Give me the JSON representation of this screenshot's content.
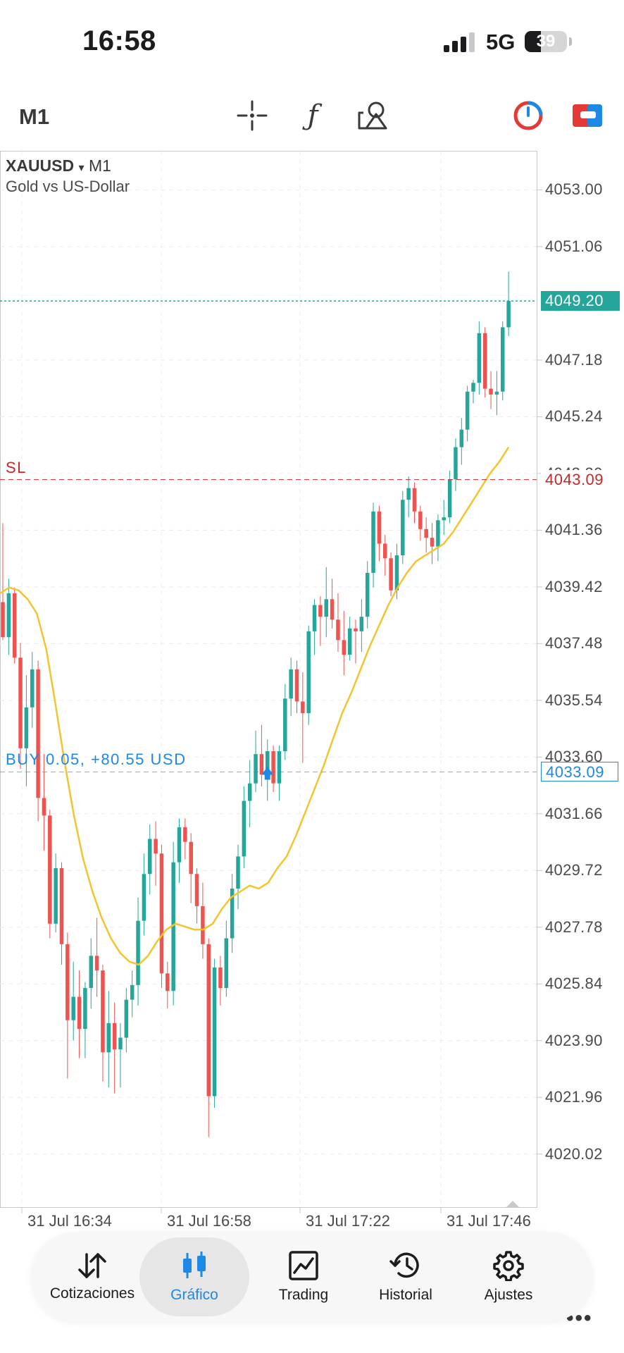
{
  "status_bar": {
    "time": "16:58",
    "network": "5G",
    "battery": "39",
    "battery_level": 0.39
  },
  "toolbar": {
    "timeframe": "M1",
    "tools": [
      "crosshair-icon",
      "indicators-icon",
      "objects-icon",
      "trade-clock-icon",
      "window-icon"
    ]
  },
  "chart": {
    "symbol": "XAUUSD",
    "symbol_arrow": "▾",
    "timeframe": "M1",
    "description": "Gold vs US-Dollar",
    "price_axis": [
      "4053.00",
      "4051.06",
      "4047.18",
      "4045.24",
      "4043.30",
      "4041.36",
      "4039.42",
      "4037.48",
      "4035.54",
      "4033.60",
      "4031.66",
      "4029.72",
      "4027.78",
      "4025.84",
      "4023.90",
      "4021.96",
      "4020.02"
    ],
    "time_axis": [
      "31 Jul 16:34",
      "31 Jul 16:58",
      "31 Jul 17:22",
      "31 Jul 17:46"
    ],
    "current_price": "4049.20",
    "sl_label": "SL",
    "sl_price": "4043.09",
    "buy_label": "BUY 0.05, +80.55 USD",
    "buy_price": "4033.09",
    "more": "•••",
    "colors": {
      "bull": "#26a69a",
      "bear": "#ef5350",
      "ma": "#f4c430",
      "buy": "#1e88e5",
      "sl": "#c62828"
    }
  },
  "chart_data": {
    "type": "candlestick",
    "symbol": "XAUUSD",
    "timeframe": "M1",
    "series": [
      {
        "name": "XAUUSD",
        "ohlc": [
          [
            4038.9,
            4041.6,
            4037.6,
            4037.7
          ],
          [
            4037.7,
            4039.7,
            4037.1,
            4039.2
          ],
          [
            4039.2,
            4039.4,
            4036.8,
            4037.0
          ],
          [
            4037.0,
            4037.5,
            4033.2,
            4033.9
          ],
          [
            4033.9,
            4036.4,
            4032.6,
            4035.3
          ],
          [
            4035.3,
            4037.2,
            4034.6,
            4036.6
          ],
          [
            4036.6,
            4036.9,
            4031.4,
            4032.2
          ],
          [
            4032.2,
            4033.7,
            4030.4,
            4031.6
          ],
          [
            4031.6,
            4031.8,
            4027.4,
            4027.9
          ],
          [
            4027.9,
            4030.3,
            4027.6,
            4029.8
          ],
          [
            4029.8,
            4030.0,
            4026.5,
            4027.2
          ],
          [
            4027.2,
            4027.6,
            4022.6,
            4024.6
          ],
          [
            4024.6,
            4026.6,
            4023.9,
            4025.4
          ],
          [
            4025.4,
            4026.3,
            4023.3,
            4024.3
          ],
          [
            4024.3,
            4025.9,
            4023.3,
            4025.7
          ],
          [
            4025.7,
            4027.4,
            4025.0,
            4026.8
          ],
          [
            4026.8,
            4028.1,
            4025.4,
            4026.3
          ],
          [
            4026.3,
            4026.5,
            4022.5,
            4023.5
          ],
          [
            4023.5,
            4025.6,
            4022.3,
            4024.5
          ],
          [
            4024.5,
            4025.2,
            4022.1,
            4023.6
          ],
          [
            4023.6,
            4024.5,
            4022.3,
            4024.0
          ],
          [
            4024.0,
            4025.7,
            4023.5,
            4025.3
          ],
          [
            4025.3,
            4026.3,
            4024.7,
            4025.8
          ],
          [
            4025.8,
            4028.8,
            4025.1,
            4028.0
          ],
          [
            4028.0,
            4030.3,
            4027.5,
            4029.6
          ],
          [
            4029.6,
            4031.3,
            4028.9,
            4030.8
          ],
          [
            4030.8,
            4031.4,
            4029.2,
            4030.3
          ],
          [
            4030.3,
            4030.6,
            4025.7,
            4026.2
          ],
          [
            4026.2,
            4026.6,
            4025.0,
            4025.6
          ],
          [
            4025.6,
            4030.7,
            4025.1,
            4030.0
          ],
          [
            4030.0,
            4031.5,
            4029.3,
            4031.2
          ],
          [
            4031.2,
            4031.5,
            4030.1,
            4030.7
          ],
          [
            4030.7,
            4031.0,
            4028.6,
            4029.6
          ],
          [
            4029.6,
            4029.8,
            4027.9,
            4028.5
          ],
          [
            4028.5,
            4029.3,
            4026.7,
            4027.2
          ],
          [
            4027.2,
            4027.4,
            4020.6,
            4022.0
          ],
          [
            4022.0,
            4026.7,
            4021.6,
            4026.4
          ],
          [
            4026.4,
            4026.8,
            4025.1,
            4025.7
          ],
          [
            4025.7,
            4028.0,
            4025.4,
            4027.4
          ],
          [
            4027.4,
            4029.6,
            4026.9,
            4029.1
          ],
          [
            4029.1,
            4030.6,
            4028.4,
            4030.2
          ],
          [
            4030.2,
            4032.6,
            4029.8,
            4032.1
          ],
          [
            4032.1,
            4033.5,
            4031.2,
            4032.7
          ],
          [
            4032.7,
            4034.5,
            4032.4,
            4033.7
          ],
          [
            4033.7,
            4034.7,
            4032.6,
            4033.0
          ],
          [
            4033.0,
            4034.2,
            4032.1,
            4033.8
          ],
          [
            4033.8,
            4034.0,
            4032.4,
            4032.7
          ],
          [
            4032.7,
            4034.0,
            4032.1,
            4033.8
          ],
          [
            4033.8,
            4036.1,
            4033.5,
            4035.6
          ],
          [
            4035.6,
            4037.0,
            4035.0,
            4036.6
          ],
          [
            4036.6,
            4036.9,
            4035.1,
            4035.5
          ],
          [
            4035.5,
            4036.5,
            4033.4,
            4035.1
          ],
          [
            4035.1,
            4038.1,
            4034.7,
            4037.9
          ],
          [
            4037.9,
            4039.0,
            4037.1,
            4038.8
          ],
          [
            4038.8,
            4039.1,
            4037.4,
            4038.4
          ],
          [
            4038.4,
            4040.1,
            4037.7,
            4039.0
          ],
          [
            4039.0,
            4039.7,
            4038.0,
            4038.3
          ],
          [
            4038.3,
            4039.2,
            4037.2,
            4037.6
          ],
          [
            4037.6,
            4038.6,
            4036.4,
            4037.1
          ],
          [
            4037.1,
            4038.4,
            4036.9,
            4038.0
          ],
          [
            4038.0,
            4038.3,
            4036.8,
            4037.9
          ],
          [
            4037.9,
            4039.0,
            4037.2,
            4038.4
          ],
          [
            4038.4,
            4040.3,
            4038.0,
            4039.9
          ],
          [
            4039.9,
            4042.3,
            4039.4,
            4042.0
          ],
          [
            4042.0,
            4042.2,
            4040.3,
            4040.9
          ],
          [
            4040.9,
            4041.2,
            4039.8,
            4040.4
          ],
          [
            4040.4,
            4040.6,
            4039.1,
            4039.3
          ],
          [
            4039.3,
            4040.9,
            4039.0,
            4040.5
          ],
          [
            4040.5,
            4042.7,
            4040.2,
            4042.4
          ],
          [
            4042.4,
            4043.2,
            4041.8,
            4042.8
          ],
          [
            4042.8,
            4043.0,
            4041.6,
            4042.0
          ],
          [
            4042.0,
            4042.2,
            4041.0,
            4041.4
          ],
          [
            4041.4,
            4041.8,
            4040.6,
            4041.1
          ],
          [
            4041.1,
            4041.6,
            4040.2,
            4040.8
          ],
          [
            4040.8,
            4041.9,
            4040.3,
            4041.7
          ],
          [
            4041.7,
            4042.4,
            4041.2,
            4041.8
          ],
          [
            4041.8,
            4043.4,
            4041.6,
            4043.1
          ],
          [
            4043.1,
            4044.5,
            4042.7,
            4044.2
          ],
          [
            4044.2,
            4045.2,
            4043.6,
            4044.8
          ],
          [
            4044.8,
            4046.3,
            4044.4,
            4046.1
          ],
          [
            4046.1,
            4046.5,
            4045.7,
            4046.4
          ],
          [
            4046.4,
            4048.5,
            4046.0,
            4048.1
          ],
          [
            4048.1,
            4048.3,
            4045.9,
            4046.2
          ],
          [
            4046.2,
            4046.8,
            4045.5,
            4046.0
          ],
          [
            4046.0,
            4046.8,
            4045.3,
            4046.1
          ],
          [
            4046.1,
            4048.5,
            4045.8,
            4048.3
          ],
          [
            4048.3,
            4050.2,
            4048.0,
            4049.2
          ]
        ]
      }
    ],
    "moving_average": [
      4039.2,
      4039.4,
      4039.3,
      4039.0,
      4038.5,
      4037.3,
      4035.4,
      4033.4,
      4031.6,
      4030.1,
      4029.0,
      4028.1,
      4027.4,
      4026.9,
      4026.6,
      4026.5,
      4026.8,
      4027.3,
      4027.7,
      4027.9,
      4027.8,
      4027.7,
      4027.7,
      4027.9,
      4028.4,
      4028.8,
      4029.0,
      4029.2,
      4029.1,
      4029.3,
      4029.8,
      4030.2,
      4030.9,
      4031.7,
      4032.5,
      4033.3,
      4034.2,
      4035.1,
      4035.8,
      4036.6,
      4037.4,
      4038.1,
      4038.8,
      4039.4,
      4039.9,
      4040.3,
      4040.5,
      4040.7,
      4040.9,
      4041.3,
      4041.8,
      4042.3,
      4042.8,
      4043.3,
      4043.7,
      4044.2
    ],
    "ylim": [
      4019.0,
      4054.0
    ],
    "current_price": 4049.2,
    "sl_price": 4043.09,
    "buy_price": 4033.09
  },
  "bottom_nav": [
    {
      "label": "Cotizaciones",
      "icon": "quotes-icon",
      "active": false
    },
    {
      "label": "Gráfico",
      "icon": "chart-icon",
      "active": true
    },
    {
      "label": "Trading",
      "icon": "trading-icon",
      "active": false
    },
    {
      "label": "Historial",
      "icon": "history-icon",
      "active": false
    },
    {
      "label": "Ajustes",
      "icon": "settings-icon",
      "active": false
    }
  ]
}
